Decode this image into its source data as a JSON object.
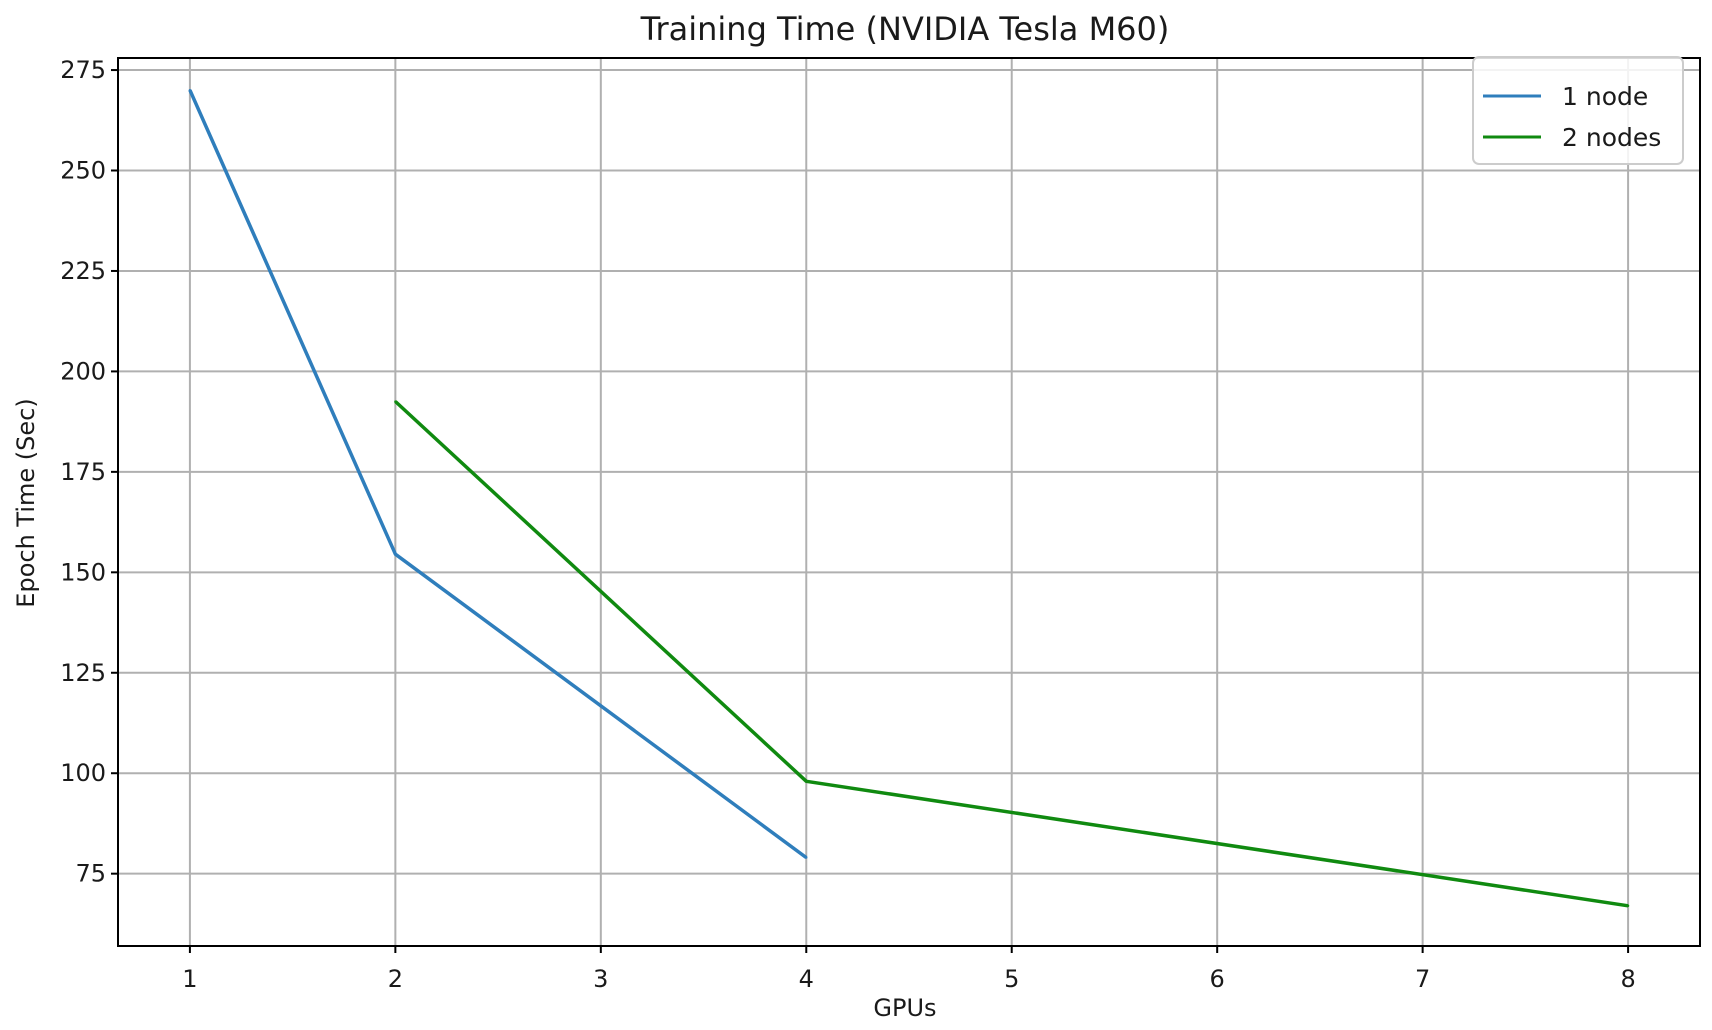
{
  "chart_data": {
    "type": "line",
    "title": "Training Time (NVIDIA Tesla M60)",
    "xlabel": "GPUs",
    "ylabel": "Epoch Time (Sec)",
    "xlim": [
      0.65,
      8.35
    ],
    "ylim": [
      57,
      278
    ],
    "xticks": [
      1,
      2,
      3,
      4,
      5,
      6,
      7,
      8
    ],
    "yticks": [
      75,
      100,
      125,
      150,
      175,
      200,
      225,
      250,
      275
    ],
    "grid": true,
    "legend_position": "top-right",
    "series": [
      {
        "name": "1 node",
        "color": "#2f7ebc",
        "x": [
          1,
          2,
          4
        ],
        "y": [
          270,
          154.5,
          79
        ]
      },
      {
        "name": "2 nodes",
        "color": "#108a10",
        "x": [
          2,
          4,
          8
        ],
        "y": [
          192.5,
          98,
          67
        ]
      }
    ]
  }
}
